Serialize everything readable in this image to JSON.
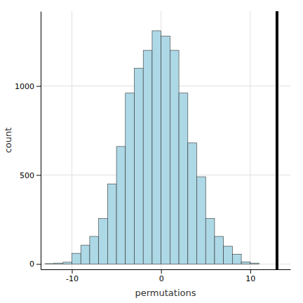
{
  "chart_data": {
    "type": "histogram",
    "xlabel": "permutations",
    "ylabel": "count",
    "bins": [
      -13,
      -12,
      -11,
      -10,
      -9,
      -8,
      -7,
      -6,
      -5,
      -4,
      -3,
      -2,
      -1,
      0,
      1,
      2,
      3,
      4,
      5,
      6,
      7,
      8,
      9,
      10,
      11
    ],
    "values": [
      2,
      5,
      10,
      60,
      105,
      155,
      255,
      450,
      660,
      960,
      1100,
      1200,
      1310,
      1280,
      1200,
      960,
      680,
      490,
      255,
      155,
      100,
      55,
      12,
      5
    ],
    "color": "#ADD8E6",
    "vline": 13.0,
    "xlim": [
      -13.5,
      14.5
    ],
    "ylim": [
      -30,
      1420
    ],
    "xticks": [
      -10,
      0,
      10
    ],
    "yticks": [
      0,
      500,
      1000
    ],
    "grid": true
  }
}
